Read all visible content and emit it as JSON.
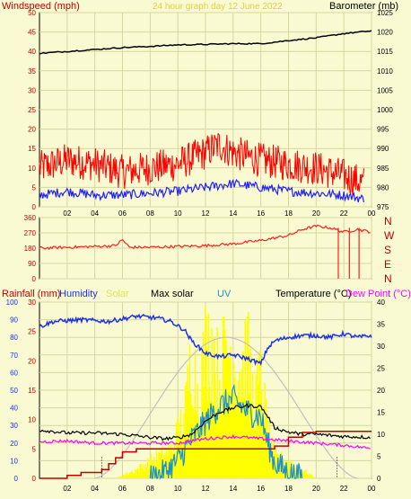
{
  "header": {
    "left_label": "Windspeed (mph)",
    "center_label": "24 hour graph day   12 June 2022",
    "right_label": "Barometer (mb)"
  },
  "wind_dir_labels": [
    "N",
    "W",
    "S",
    "E",
    "N"
  ],
  "legend": {
    "rainfall": "Rainfall (mm)",
    "humidity": "Humidity",
    "solar": "Solar",
    "max_solar": "Max solar",
    "uv": "UV",
    "temperature": "Temperature (°C)",
    "dew_point": "Dew Point (°C)"
  },
  "colors": {
    "background": "#fafad2",
    "frame": "#000000",
    "gridline": "#d6d6a0",
    "wind_gust": "#ff0000",
    "wind_avg": "#2020ff",
    "barometer": "#000000",
    "wind_dir": "#ff2020",
    "rainfall": "#c00000",
    "humidity": "#1e32e6",
    "solar": "#ffff00",
    "max_solar": "#c0c0c0",
    "uv": "#1e90d0",
    "temperature": "#000000",
    "dew_point": "#ff00ff",
    "header_left": "#c00000",
    "header_center": "#e0d040",
    "header_right": "#000000"
  },
  "chart_data": [
    {
      "type": "line",
      "name": "wind-barometer",
      "x_ticks": [
        "02",
        "04",
        "06",
        "08",
        "10",
        "12",
        "14",
        "16",
        "18",
        "20",
        "22",
        "00"
      ],
      "left_ylim": [
        0,
        50
      ],
      "left_ticks": [
        "0",
        "5",
        "10",
        "15",
        "20",
        "25",
        "30",
        "35",
        "40",
        "45",
        "50"
      ],
      "right_ylim": [
        975,
        1025
      ],
      "right_ticks": [
        "975",
        "980",
        "985",
        "990",
        "995",
        "1000",
        "1005",
        "1010",
        "1015",
        "1020",
        "1025"
      ],
      "series": [
        {
          "name": "Windspeed gust",
          "x": [
            0,
            2,
            4,
            6,
            8,
            10,
            12,
            13,
            14,
            16,
            18,
            20,
            22,
            23.5
          ],
          "values": [
            10,
            12,
            11,
            9,
            10,
            11,
            14,
            16,
            14,
            12,
            11,
            10,
            8,
            6
          ]
        },
        {
          "name": "Windspeed average",
          "x": [
            0,
            2,
            4,
            6,
            8,
            10,
            12,
            14,
            16,
            18,
            20,
            22,
            23.5
          ],
          "values": [
            3,
            4,
            3,
            3,
            3.5,
            4,
            5,
            6,
            5,
            4,
            3.5,
            3,
            2
          ]
        },
        {
          "name": "Barometer",
          "x": [
            0,
            2,
            4,
            6,
            8,
            10,
            12,
            14,
            16,
            18,
            20,
            22,
            24
          ],
          "values": [
            1014.5,
            1015,
            1015.5,
            1016,
            1016.3,
            1016.7,
            1016.8,
            1017,
            1017,
            1017.8,
            1018.5,
            1019.6,
            1020.3
          ]
        }
      ]
    },
    {
      "type": "scatter",
      "name": "wind-direction",
      "x_ticks": [
        "02",
        "04",
        "06",
        "08",
        "10",
        "12",
        "14",
        "16",
        "18",
        "20",
        "22",
        "00"
      ],
      "ylim": [
        0,
        360
      ],
      "y_ticks": [
        "0",
        "90",
        "180",
        "270",
        "360"
      ],
      "series": [
        {
          "name": "Wind direction",
          "x": [
            0,
            2,
            4,
            5.5,
            6,
            6.5,
            8,
            10,
            12,
            14,
            16,
            17,
            18,
            19,
            20,
            21,
            22,
            23,
            24
          ],
          "values": [
            180,
            185,
            190,
            195,
            230,
            185,
            185,
            190,
            195,
            205,
            225,
            240,
            255,
            290,
            310,
            300,
            275,
            290,
            275
          ]
        }
      ]
    },
    {
      "type": "line",
      "name": "rain-humidity-solar-temperature",
      "x_ticks": [
        "02",
        "04",
        "06",
        "08",
        "10",
        "12",
        "14",
        "16",
        "18",
        "20",
        "22",
        "00"
      ],
      "humidity_ylim": [
        0,
        100
      ],
      "humidity_ticks": [
        "0",
        "10",
        "20",
        "30",
        "40",
        "50",
        "60",
        "70",
        "80",
        "90",
        "100"
      ],
      "rain_ylim": [
        0,
        30
      ],
      "rain_ticks": [
        "0",
        "5",
        "10",
        "15",
        "20",
        "25",
        "30"
      ],
      "temp_ylim": [
        0,
        40
      ],
      "temp_ticks": [
        "0",
        "5",
        "10",
        "15",
        "20",
        "25",
        "30",
        "35",
        "40"
      ],
      "series": [
        {
          "name": "Humidity",
          "x": [
            0,
            1,
            3,
            5,
            7,
            8.5,
            9.5,
            10.5,
            11,
            12,
            13,
            14,
            15,
            16,
            16.5,
            17,
            18,
            19,
            20,
            21,
            22,
            23,
            24
          ],
          "values": [
            86,
            89,
            90,
            89,
            92,
            91,
            89,
            84,
            78,
            71,
            69,
            70,
            68,
            65,
            74,
            78,
            80,
            81,
            81,
            80,
            82,
            80,
            81
          ]
        },
        {
          "name": "Temperature",
          "x": [
            0,
            2,
            4,
            6,
            8,
            9,
            10,
            11,
            12,
            13,
            14,
            15,
            16,
            16.5,
            17,
            18,
            19,
            20,
            22,
            24
          ],
          "values": [
            11,
            10.3,
            10.3,
            10,
            9.3,
            9,
            9.2,
            10,
            13,
            15,
            16,
            16.5,
            16.3,
            14,
            11.5,
            10.5,
            10,
            10,
            9.5,
            9.3
          ]
        },
        {
          "name": "Dew Point",
          "x": [
            0,
            2,
            4,
            6,
            8,
            10,
            12,
            14,
            16,
            18,
            20,
            22,
            24
          ],
          "values": [
            8.3,
            8.5,
            8,
            8,
            8,
            8,
            9,
            9.5,
            9,
            8.5,
            8,
            7.5,
            6.8
          ]
        },
        {
          "name": "Rainfall",
          "x": [
            0,
            1.5,
            2,
            3,
            4.5,
            5,
            5.5,
            6,
            7,
            8,
            10,
            14,
            16,
            17,
            18,
            19,
            20,
            24
          ],
          "values": [
            0,
            0,
            0.5,
            1,
            1.5,
            2.5,
            3.5,
            4.5,
            5,
            5,
            5,
            5,
            5,
            5.5,
            7,
            7.8,
            8,
            8
          ]
        },
        {
          "name": "Max solar",
          "x": [
            4,
            6,
            8,
            10,
            12,
            13.5,
            15,
            17,
            19,
            21,
            23
          ],
          "values": [
            0,
            150,
            400,
            620,
            760,
            800,
            760,
            620,
            400,
            150,
            0
          ]
        },
        {
          "name": "Solar",
          "x": [
            5.5,
            7,
            8.5,
            9.5,
            10.5,
            11,
            11.5,
            12,
            12.5,
            13,
            13.5,
            14,
            14.5,
            15,
            15.5,
            16,
            16.5,
            17,
            18,
            19,
            20
          ],
          "values": [
            0,
            60,
            150,
            200,
            450,
            880,
            600,
            920,
            950,
            700,
            950,
            850,
            750,
            900,
            550,
            700,
            350,
            150,
            120,
            60,
            0
          ]
        },
        {
          "name": "UV",
          "x": [
            8,
            9,
            10,
            11,
            12,
            13,
            14,
            15,
            16,
            16.5,
            17,
            18,
            19
          ],
          "values": [
            0,
            0.3,
            1,
            2.2,
            3.2,
            4.1,
            4.5,
            3.8,
            3.5,
            2,
            0.9,
            0.3,
            0
          ]
        }
      ]
    }
  ]
}
